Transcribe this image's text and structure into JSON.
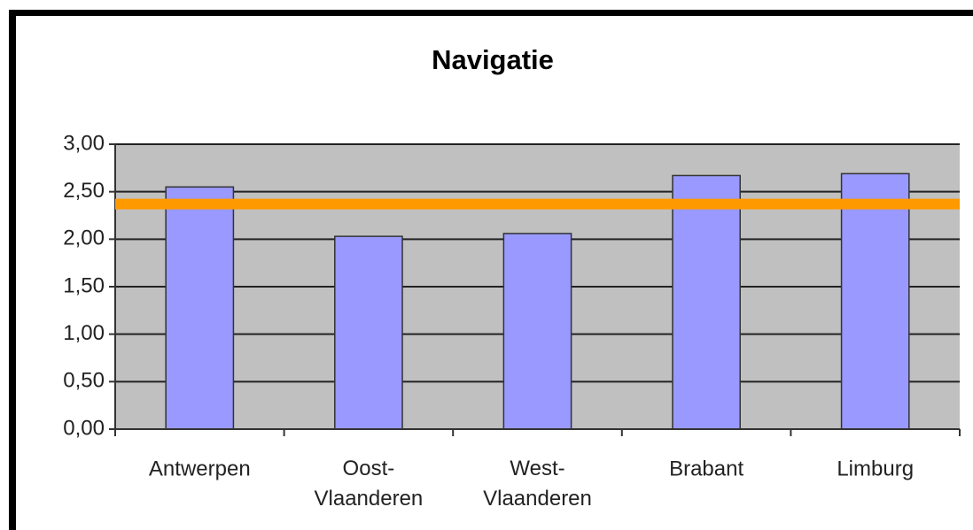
{
  "chart_data": {
    "type": "bar",
    "title": "Navigatie",
    "categories": [
      "Antwerpen",
      "Oost-\nVlaanderen",
      "West-\nVlaanderen",
      "Brabant",
      "Limburg"
    ],
    "values": [
      2.55,
      2.03,
      2.06,
      2.67,
      2.69
    ],
    "color": "#9999ff",
    "reference_line": {
      "value": 2.37,
      "color": "#ff9900"
    },
    "ylim": [
      0,
      3
    ],
    "yticks": [
      {
        "value": 0,
        "label": "0,00"
      },
      {
        "value": 0.5,
        "label": "0,50"
      },
      {
        "value": 1,
        "label": "1,00"
      },
      {
        "value": 1.5,
        "label": "1,50"
      },
      {
        "value": 2,
        "label": "2,00"
      },
      {
        "value": 2.5,
        "label": "2,50"
      },
      {
        "value": 3,
        "label": "3,00"
      }
    ],
    "grid": true
  }
}
